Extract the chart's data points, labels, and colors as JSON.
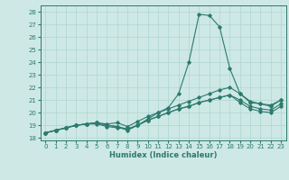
{
  "xlabel": "Humidex (Indice chaleur)",
  "ylabel": "",
  "xlim": [
    -0.5,
    23.5
  ],
  "ylim": [
    17.8,
    28.5
  ],
  "yticks": [
    18,
    19,
    20,
    21,
    22,
    23,
    24,
    25,
    26,
    27,
    28
  ],
  "xticks": [
    0,
    1,
    2,
    3,
    4,
    5,
    6,
    7,
    8,
    9,
    10,
    11,
    12,
    13,
    14,
    15,
    16,
    17,
    18,
    19,
    20,
    21,
    22,
    23
  ],
  "bg_color": "#cde8e5",
  "line_color": "#2d7a6e",
  "grid_color": "#afd6d2",
  "line1": [
    18.4,
    18.6,
    18.8,
    19.0,
    19.1,
    19.2,
    19.0,
    18.9,
    18.6,
    19.0,
    19.5,
    20.0,
    20.4,
    21.5,
    24.0,
    27.8,
    27.7,
    26.8,
    23.5,
    21.5,
    20.8,
    20.7,
    20.5,
    21.0
  ],
  "line2": [
    18.4,
    18.6,
    18.8,
    19.0,
    19.1,
    19.2,
    19.1,
    19.2,
    18.9,
    19.3,
    19.7,
    20.0,
    20.3,
    20.6,
    20.9,
    21.2,
    21.5,
    21.8,
    22.0,
    21.5,
    20.9,
    20.7,
    20.6,
    21.0
  ],
  "line3": [
    18.4,
    18.6,
    18.8,
    19.0,
    19.1,
    19.1,
    18.9,
    18.8,
    18.7,
    19.0,
    19.4,
    19.7,
    20.0,
    20.3,
    20.5,
    20.8,
    21.0,
    21.2,
    21.4,
    21.0,
    20.5,
    20.3,
    20.2,
    20.7
  ],
  "line4": [
    18.4,
    18.6,
    18.8,
    19.0,
    19.1,
    19.2,
    19.0,
    18.9,
    18.7,
    19.0,
    19.4,
    19.7,
    20.0,
    20.3,
    20.5,
    20.8,
    21.0,
    21.2,
    21.4,
    20.8,
    20.3,
    20.1,
    20.0,
    20.5
  ]
}
